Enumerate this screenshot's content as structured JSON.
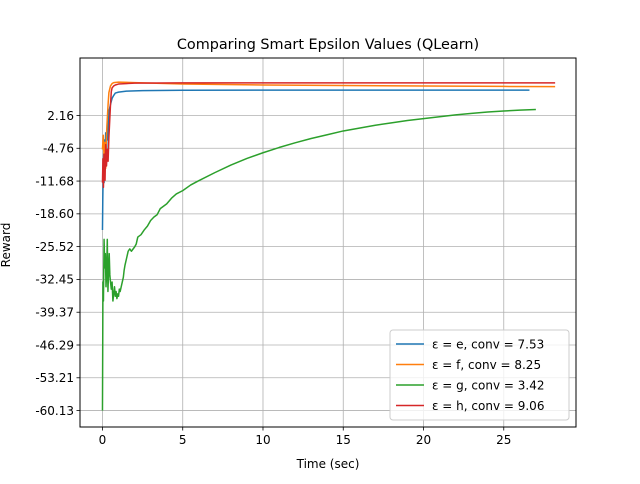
{
  "chart_data": {
    "type": "line",
    "title": "Comparing Smart Epsilon Values (QLearn)",
    "xlabel": "Time (sec)",
    "ylabel": "Reward",
    "xlim": [
      -1.4,
      29.5
    ],
    "ylim": [
      -63.6,
      14.3
    ],
    "x_ticks": [
      0,
      5,
      10,
      15,
      20,
      25
    ],
    "x_tick_labels": [
      "0",
      "5",
      "10",
      "15",
      "20",
      "25"
    ],
    "y_ticks": [
      -60.13,
      -53.21,
      -46.29,
      -39.37,
      -32.45,
      -25.52,
      -18.6,
      -11.68,
      -4.76,
      2.16
    ],
    "y_tick_labels": [
      "-60.13",
      "-53.21",
      "-46.29",
      "-39.37",
      "-32.45",
      "-25.52",
      "-18.60",
      "-11.68",
      "-4.76",
      "2.16"
    ],
    "grid": true,
    "legend_position": "lower right",
    "series": [
      {
        "name": "ε = e, conv = 7.53",
        "color": "#1f77b4",
        "points": [
          [
            0.0,
            -22.0
          ],
          [
            0.02,
            -15.5
          ],
          [
            0.05,
            -9.0
          ],
          [
            0.08,
            -6.0
          ],
          [
            0.1,
            -12.0
          ],
          [
            0.13,
            -3.0
          ],
          [
            0.16,
            -8.0
          ],
          [
            0.2,
            -1.5
          ],
          [
            0.25,
            -6.0
          ],
          [
            0.3,
            1.0
          ],
          [
            0.35,
            -3.0
          ],
          [
            0.4,
            3.0
          ],
          [
            0.5,
            4.5
          ],
          [
            0.6,
            5.8
          ],
          [
            0.7,
            6.4
          ],
          [
            0.8,
            6.9
          ],
          [
            1.0,
            7.1
          ],
          [
            1.5,
            7.3
          ],
          [
            2.5,
            7.4
          ],
          [
            5,
            7.5
          ],
          [
            10,
            7.53
          ],
          [
            15,
            7.53
          ],
          [
            20,
            7.53
          ],
          [
            26.6,
            7.53
          ]
        ]
      },
      {
        "name": "ε = f, conv = 8.25",
        "color": "#ff7f0e",
        "points": [
          [
            0.0,
            -5.0
          ],
          [
            0.05,
            -2.0
          ],
          [
            0.1,
            -7.0
          ],
          [
            0.15,
            -3.5
          ],
          [
            0.2,
            -9.0
          ],
          [
            0.25,
            -2.0
          ],
          [
            0.3,
            1.5
          ],
          [
            0.35,
            4.5
          ],
          [
            0.4,
            7.0
          ],
          [
            0.5,
            8.4
          ],
          [
            0.6,
            8.9
          ],
          [
            0.7,
            9.1
          ],
          [
            1.0,
            9.2
          ],
          [
            2,
            9.1
          ],
          [
            5,
            8.8
          ],
          [
            10,
            8.6
          ],
          [
            15,
            8.5
          ],
          [
            20,
            8.4
          ],
          [
            25,
            8.3
          ],
          [
            28.2,
            8.25
          ]
        ]
      },
      {
        "name": "ε = g, conv = 3.42",
        "color": "#2ca02c",
        "points": [
          [
            0.0,
            -60.13
          ],
          [
            0.03,
            -33.0
          ],
          [
            0.06,
            -37.0
          ],
          [
            0.1,
            -24.0
          ],
          [
            0.14,
            -30.0
          ],
          [
            0.18,
            -27.0
          ],
          [
            0.22,
            -34.0
          ],
          [
            0.26,
            -31.0
          ],
          [
            0.3,
            -24.0
          ],
          [
            0.34,
            -35.0
          ],
          [
            0.38,
            -31.0
          ],
          [
            0.42,
            -27.0
          ],
          [
            0.46,
            -31.5
          ],
          [
            0.5,
            -33.0
          ],
          [
            0.55,
            -34.5
          ],
          [
            0.6,
            -33.0
          ],
          [
            0.65,
            -37.0
          ],
          [
            0.7,
            -35.5
          ],
          [
            0.75,
            -34.0
          ],
          [
            0.8,
            -36.0
          ],
          [
            0.85,
            -35.0
          ],
          [
            0.9,
            -36.5
          ],
          [
            0.95,
            -35.5
          ],
          [
            1.0,
            -36.0
          ],
          [
            1.05,
            -34.5
          ],
          [
            1.1,
            -35.0
          ],
          [
            1.2,
            -33.5
          ],
          [
            1.3,
            -32.0
          ],
          [
            1.35,
            -30.5
          ],
          [
            1.4,
            -29.5
          ],
          [
            1.5,
            -28.0
          ],
          [
            1.6,
            -26.5
          ],
          [
            1.7,
            -26.0
          ],
          [
            1.8,
            -26.5
          ],
          [
            2.0,
            -25.6
          ],
          [
            2.1,
            -25.0
          ],
          [
            2.2,
            -23.5
          ],
          [
            2.4,
            -23.0
          ],
          [
            2.6,
            -22.0
          ],
          [
            2.8,
            -21.2
          ],
          [
            3.0,
            -20.0
          ],
          [
            3.2,
            -19.3
          ],
          [
            3.4,
            -18.8
          ],
          [
            3.6,
            -17.5
          ],
          [
            3.8,
            -17.0
          ],
          [
            4.0,
            -16.5
          ],
          [
            4.3,
            -15.3
          ],
          [
            4.6,
            -14.4
          ],
          [
            5.0,
            -13.7
          ],
          [
            5.5,
            -12.5
          ],
          [
            6,
            -11.6
          ],
          [
            7,
            -9.9
          ],
          [
            8,
            -8.3
          ],
          [
            9,
            -6.9
          ],
          [
            10,
            -5.7
          ],
          [
            11,
            -4.6
          ],
          [
            12,
            -3.6
          ],
          [
            13,
            -2.7
          ],
          [
            14,
            -1.9
          ],
          [
            15,
            -1.1
          ],
          [
            16,
            -0.5
          ],
          [
            17,
            0.1
          ],
          [
            18,
            0.6
          ],
          [
            19,
            1.1
          ],
          [
            20,
            1.5
          ],
          [
            21,
            1.9
          ],
          [
            22,
            2.3
          ],
          [
            23,
            2.6
          ],
          [
            24,
            2.9
          ],
          [
            25,
            3.1
          ],
          [
            26,
            3.3
          ],
          [
            27.0,
            3.42
          ]
        ]
      },
      {
        "name": "ε = h, conv = 9.06",
        "color": "#d62728",
        "points": [
          [
            0.0,
            -12.0
          ],
          [
            0.03,
            -7.0
          ],
          [
            0.06,
            -13.0
          ],
          [
            0.1,
            -6.0
          ],
          [
            0.13,
            -10.0
          ],
          [
            0.16,
            -11.5
          ],
          [
            0.2,
            -4.0
          ],
          [
            0.25,
            -8.5
          ],
          [
            0.3,
            -5.0
          ],
          [
            0.35,
            -7.5
          ],
          [
            0.4,
            -2.5
          ],
          [
            0.45,
            1.0
          ],
          [
            0.5,
            4.5
          ],
          [
            0.55,
            7.2
          ],
          [
            0.6,
            8.0
          ],
          [
            0.7,
            8.4
          ],
          [
            0.8,
            8.6
          ],
          [
            1.0,
            8.8
          ],
          [
            2,
            9.0
          ],
          [
            5,
            9.05
          ],
          [
            10,
            9.06
          ],
          [
            15,
            9.06
          ],
          [
            20,
            9.06
          ],
          [
            25,
            9.06
          ],
          [
            28.2,
            9.06
          ]
        ]
      }
    ]
  }
}
